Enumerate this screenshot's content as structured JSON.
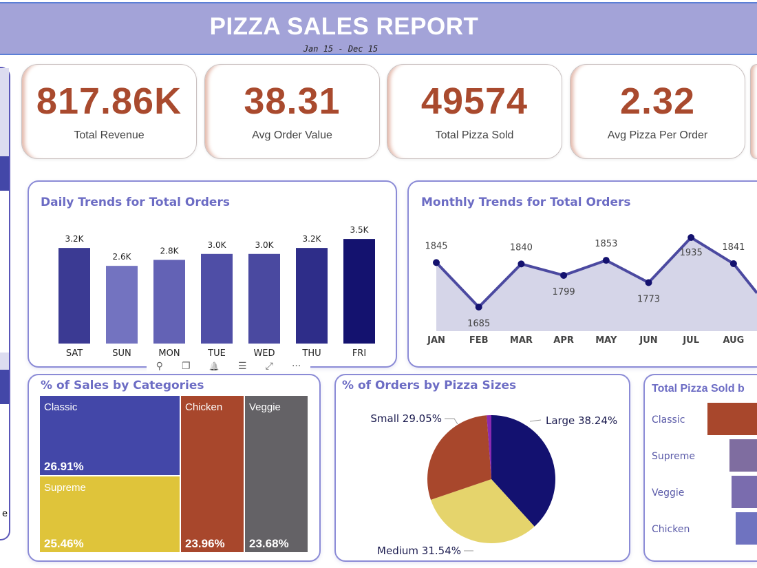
{
  "header": {
    "title": "PIZZA SALES REPORT",
    "subtitle": "Jan 15 - Dec 15"
  },
  "kpis": [
    {
      "value": "817.86K",
      "label": "Total Revenue"
    },
    {
      "value": "38.31",
      "label": "Avg Order Value"
    },
    {
      "value": "49574",
      "label": "Total Pizza Sold"
    },
    {
      "value": "2.32",
      "label": "Avg Pizza Per Order"
    }
  ],
  "sidebar": {
    "partial_text": "e"
  },
  "toolbar": {
    "icons": [
      "pin-icon",
      "copy-icon",
      "bell-icon",
      "filter-icon",
      "expand-icon",
      "more-icon"
    ],
    "labels": [
      "⚲",
      "❐",
      "🔔",
      "☰",
      "⤢",
      "···"
    ]
  },
  "colors": {
    "accent": "#a94a2e",
    "title": "#6c6cc4",
    "header": "#a3a3d8"
  },
  "chart_data": [
    {
      "type": "bar",
      "title": "Daily Trends for Total Orders",
      "categories": [
        "SAT",
        "SUN",
        "MON",
        "TUE",
        "WED",
        "THU",
        "FRI"
      ],
      "values": [
        3.2,
        2.6,
        2.8,
        3.0,
        3.0,
        3.2,
        3.5
      ],
      "data_labels": [
        "3.2K",
        "2.6K",
        "2.8K",
        "3.0K",
        "3.0K",
        "3.2K",
        "3.5K"
      ],
      "colors": [
        "#3b3a93",
        "#7373c0",
        "#6362b5",
        "#4f4ea6",
        "#4a49a0",
        "#2e2d89",
        "#14126f"
      ],
      "unit": "K"
    },
    {
      "type": "area",
      "title": "Monthly Trends for Total Orders",
      "categories": [
        "JAN",
        "FEB",
        "MAR",
        "APR",
        "MAY",
        "JUN",
        "JUL",
        "AUG"
      ],
      "values": [
        1845,
        1685,
        1840,
        1799,
        1853,
        1773,
        1935,
        1841
      ],
      "line_color": "#4b49a0",
      "fill_color": "#d5d5e8"
    },
    {
      "type": "treemap",
      "title": "% of Sales by Categories",
      "items": [
        {
          "name": "Classic",
          "value": "26.91%",
          "color": "#4347a8"
        },
        {
          "name": "Supreme",
          "value": "25.46%",
          "color": "#dfc43a"
        },
        {
          "name": "Chicken",
          "value": "23.96%",
          "color": "#a8472c"
        },
        {
          "name": "Veggie",
          "value": "23.68%",
          "color": "#646266"
        }
      ]
    },
    {
      "type": "pie",
      "title": "% of Orders by Pizza Sizes",
      "slices": [
        {
          "name": "Large",
          "value": 38.24,
          "label": "Large 38.24%",
          "color": "#131170"
        },
        {
          "name": "Medium",
          "value": 31.54,
          "label": "Medium 31.54%",
          "color": "#e5d46c"
        },
        {
          "name": "Small",
          "value": 29.05,
          "label": "Small 29.05%",
          "color": "#a8472c"
        },
        {
          "name": "",
          "value": 1.17,
          "label": "",
          "color": "#8a2ab0"
        }
      ]
    },
    {
      "type": "bar",
      "orientation": "horizontal",
      "title": "Total Pizza Sold b",
      "categories": [
        "Classic",
        "Supreme",
        "Veggie",
        "Chicken"
      ],
      "colors": [
        "#a8472c",
        "#7f6da0",
        "#7a6cae",
        "#6f73c0"
      ]
    }
  ]
}
